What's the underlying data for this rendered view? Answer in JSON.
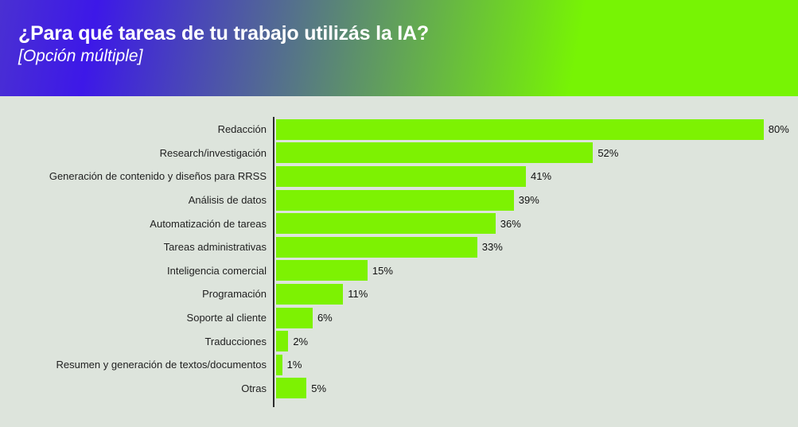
{
  "header": {
    "title": "¿Para qué tareas de tu trabajo utilizás la IA?",
    "subtitle": "[Opción múltiple]"
  },
  "chart_data": {
    "type": "bar",
    "orientation": "horizontal",
    "title": "¿Para qué tareas de tu trabajo utilizás la IA?",
    "subtitle": "[Opción múltiple]",
    "categories": [
      "Redacción",
      "Research/investigación",
      "Generación de contenido y diseños para RRSS",
      "Análisis de datos",
      "Automatización de tareas",
      "Tareas administrativas",
      "Inteligencia comercial",
      "Programación",
      "Soporte al cliente",
      "Traducciones",
      "Resumen y generación de textos/documentos",
      "Otras"
    ],
    "values": [
      80,
      52,
      41,
      39,
      36,
      33,
      15,
      11,
      6,
      2,
      1,
      5
    ],
    "value_labels": [
      "80%",
      "52%",
      "41%",
      "39%",
      "36%",
      "33%",
      "15%",
      "11%",
      "6%",
      "2%",
      "1%",
      "5%"
    ],
    "unit": "%",
    "xlim": [
      0,
      100
    ],
    "grid": false,
    "legend": false
  },
  "colors": {
    "header_gradient_start": "#3d18e8",
    "header_gradient_end": "#77f404",
    "page_background": "#dde4dc",
    "bar_fill": "#7df202",
    "axis_line": "#2b2b2b",
    "category_text": "#1f1f1f",
    "value_text": "#111111",
    "title_text": "#ffffff"
  }
}
